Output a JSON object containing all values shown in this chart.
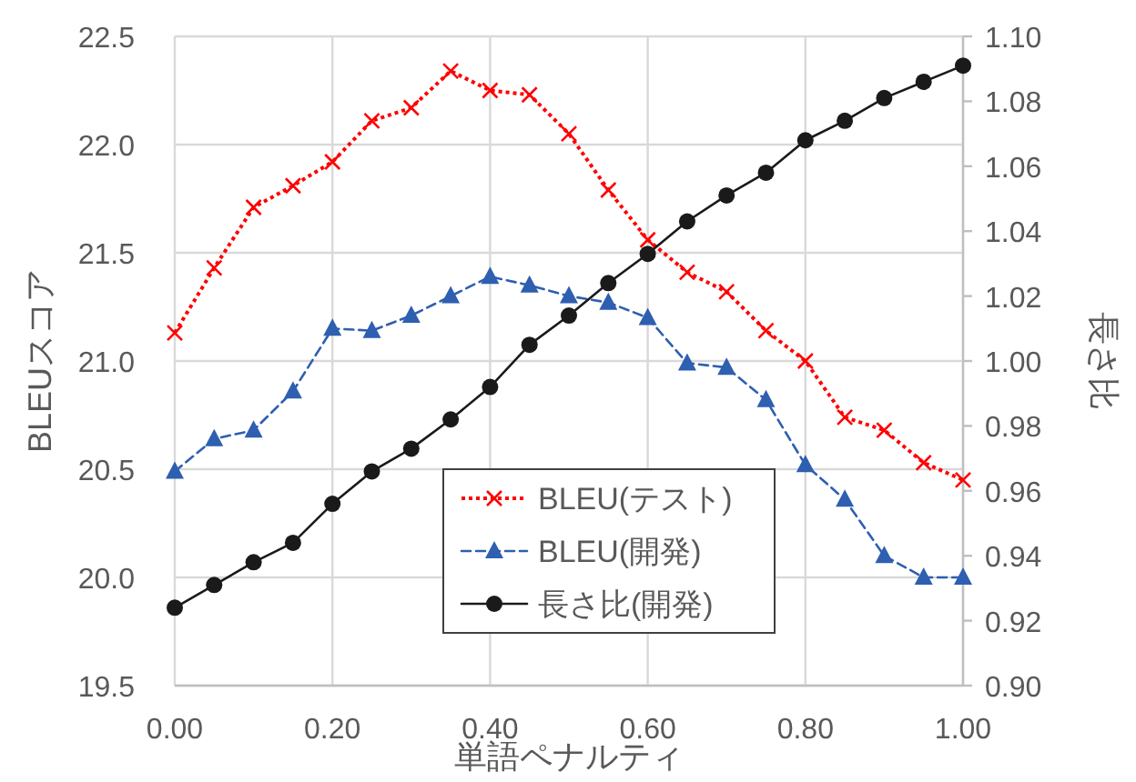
{
  "chart_data": {
    "type": "line",
    "xlabel": "単語ペナルティ",
    "ylabel": "BLEUスコア",
    "y2label": "長さ比",
    "x": [
      0,
      0.05,
      0.1,
      0.15,
      0.2,
      0.25,
      0.3,
      0.35,
      0.4,
      0.45,
      0.5,
      0.55,
      0.6,
      0.65,
      0.7,
      0.75,
      0.8,
      0.85,
      0.9,
      0.95,
      1.0
    ],
    "series": [
      {
        "name": "BLEU(テスト)",
        "color": "#ff0000",
        "marker": "cross",
        "line_style": "dotted",
        "values": [
          21.13,
          21.43,
          21.71,
          21.81,
          21.92,
          22.11,
          22.17,
          22.34,
          22.25,
          22.23,
          22.05,
          21.79,
          21.56,
          21.41,
          21.32,
          21.14,
          21.0,
          20.74,
          20.68,
          20.53,
          20.45
        ]
      },
      {
        "name": "BLEU(開発)",
        "color": "#2e5fb0",
        "marker": "triangle",
        "line_style": "dashed",
        "values": [
          20.49,
          20.64,
          20.68,
          20.86,
          21.15,
          21.14,
          21.21,
          21.3,
          21.39,
          21.35,
          21.3,
          21.27,
          21.2,
          20.99,
          20.97,
          20.82,
          20.52,
          20.36,
          20.1,
          20.0,
          20.0
        ]
      },
      {
        "name": "長さ比(開発)",
        "color": "#1a1a1a",
        "marker": "circle",
        "line_style": "solid",
        "axis": "y2",
        "values": [
          0.924,
          0.931,
          0.938,
          0.944,
          0.956,
          0.966,
          0.973,
          0.982,
          0.992,
          1.005,
          1.014,
          1.024,
          1.033,
          1.043,
          1.051,
          1.058,
          1.068,
          1.074,
          1.081,
          1.086,
          1.091
        ]
      }
    ],
    "xlim": [
      0,
      1.0
    ],
    "xticks": [
      {
        "value": 0,
        "label": "0.00"
      },
      {
        "value": 0.2,
        "label": "0.20"
      },
      {
        "value": 0.4,
        "label": "0.40"
      },
      {
        "value": 0.6,
        "label": "0.60"
      },
      {
        "value": 0.8,
        "label": "0.80"
      },
      {
        "value": 1.0,
        "label": "1.00"
      }
    ],
    "ylim": [
      19.5,
      22.5
    ],
    "yticks": [
      19.5,
      {
        "value": 20,
        "label": "20.0"
      },
      20.5,
      {
        "value": 21,
        "label": "21.0"
      },
      21.5,
      {
        "value": 22,
        "label": "22.0"
      },
      22.5
    ],
    "y2lim": [
      0.9,
      1.1
    ],
    "y2ticks": [
      {
        "value": 0.9,
        "label": "0.90"
      },
      {
        "value": 0.92,
        "label": "0.92"
      },
      {
        "value": 0.94,
        "label": "0.94"
      },
      {
        "value": 0.96,
        "label": "0.96"
      },
      {
        "value": 0.98,
        "label": "0.98"
      },
      {
        "value": 1.0,
        "label": "1.00"
      },
      {
        "value": 1.02,
        "label": "1.02"
      },
      {
        "value": 1.04,
        "label": "1.04"
      },
      {
        "value": 1.06,
        "label": "1.06"
      },
      {
        "value": 1.08,
        "label": "1.08"
      },
      {
        "value": 1.1,
        "label": "1.10"
      }
    ],
    "grid": true,
    "legend": "bottom"
  }
}
